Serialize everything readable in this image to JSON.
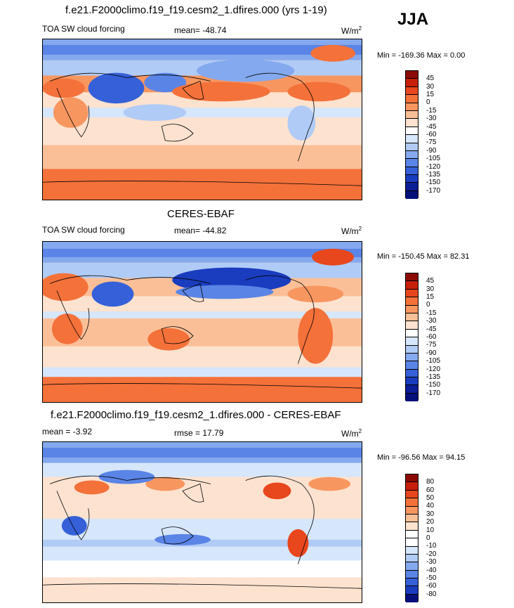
{
  "season": "JJA",
  "panels": [
    {
      "title": "f.e21.F2000climo.f19_f19.cesm2_1.dfires.000 (yrs 1-19)",
      "left_label": "TOA SW cloud forcing",
      "center_label": "mean= -48.74",
      "units": "W/m",
      "units_exp": "2",
      "minmax": "Min = -169.36 Max =   0.00",
      "colorbar": [
        "45",
        "30",
        "15",
        "0",
        "-15",
        "-30",
        "-45",
        "-60",
        "-75",
        "-90",
        "-105",
        "-120",
        "-135",
        "-150",
        "-170"
      ]
    },
    {
      "title": "CERES-EBAF",
      "left_label": "TOA SW cloud forcing",
      "center_label": "mean= -44.82",
      "units": "W/m",
      "units_exp": "2",
      "minmax": "Min = -150.45 Max =  82.31",
      "colorbar": [
        "45",
        "30",
        "15",
        "0",
        "-15",
        "-30",
        "-45",
        "-60",
        "-75",
        "-90",
        "-105",
        "-120",
        "-135",
        "-150",
        "-170"
      ]
    },
    {
      "title": "f.e21.F2000climo.f19_f19.cesm2_1.dfires.000 - CERES-EBAF",
      "left_label": "mean =  -3.92",
      "center_label": "rmse =  17.79",
      "units": "W/m",
      "units_exp": "2",
      "minmax": "Min = -96.56 Max =  94.15",
      "colorbar": [
        "80",
        "60",
        "50",
        "40",
        "30",
        "20",
        "10",
        "0",
        "-10",
        "-20",
        "-30",
        "-40",
        "-50",
        "-60",
        "-80"
      ]
    }
  ],
  "colors": {
    "abs_scale": [
      "#8b0a05",
      "#c81e0a",
      "#e8461c",
      "#f4713a",
      "#f89660",
      "#fbbf97",
      "#fde2cf",
      "#ffffff",
      "#d6e6fb",
      "#b0cbf5",
      "#85a9ee",
      "#5a84e6",
      "#3560d8",
      "#1a3cbf",
      "#0c1e96",
      "#06107a"
    ],
    "diff_scale": [
      "#8b0a05",
      "#c81e0a",
      "#e8461c",
      "#f4713a",
      "#f89660",
      "#fbbf97",
      "#fde2cf",
      "#ffffff",
      "#ffffff",
      "#d6e6fb",
      "#b0cbf5",
      "#85a9ee",
      "#5a84e6",
      "#3560d8",
      "#1a3cbf",
      "#06107a"
    ]
  }
}
